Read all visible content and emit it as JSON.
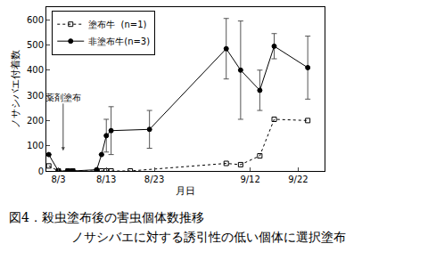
{
  "chart_data": {
    "type": "line",
    "title": "図4．殺虫塗布後の害虫個体数推移",
    "subtitle": "ノサシバエに対する誘引性の低い個体に選択塗布",
    "x_label": "月日",
    "y_label": "ノサシバエ付着数",
    "xlim": [
      0.5,
      58.5
    ],
    "xticks": [
      {
        "value": 3,
        "label": "8/3"
      },
      {
        "value": 13,
        "label": "8/13"
      },
      {
        "value": 23,
        "label": "8/23"
      },
      {
        "value": 43,
        "label": "9/12"
      },
      {
        "value": 53,
        "label": "9/22"
      }
    ],
    "ylim": [
      0,
      650
    ],
    "yticks": [
      0,
      100,
      200,
      300,
      400,
      500,
      600
    ],
    "grid": false,
    "legend": "upper left",
    "annotations": [
      {
        "text": "薬剤塗布",
        "x": 4
      }
    ],
    "series": [
      {
        "name": "塗布牛  (n=1)",
        "color": "#000000",
        "marker": "square-open",
        "line_style": "dotted",
        "x": [
          1,
          3,
          5,
          6,
          11,
          12,
          13,
          14,
          18,
          38,
          41,
          45,
          48,
          55
        ],
        "values": [
          20,
          0,
          0,
          0,
          0,
          0,
          0,
          0,
          0,
          30,
          25,
          60,
          205,
          200
        ]
      },
      {
        "name": "非塗布牛(n=3)",
        "color": "#000000",
        "marker": "circle",
        "line_style": "solid",
        "x": [
          1,
          3,
          5,
          6,
          11,
          12,
          13,
          14,
          22,
          38,
          41,
          45,
          48,
          55
        ],
        "values": [
          65,
          0,
          0,
          0,
          5,
          65,
          140,
          160,
          165,
          485,
          400,
          320,
          495,
          410
        ],
        "errors": [
          0,
          0,
          0,
          0,
          0,
          0,
          65,
          95,
          75,
          120,
          195,
          80,
          50,
          125
        ]
      }
    ]
  }
}
